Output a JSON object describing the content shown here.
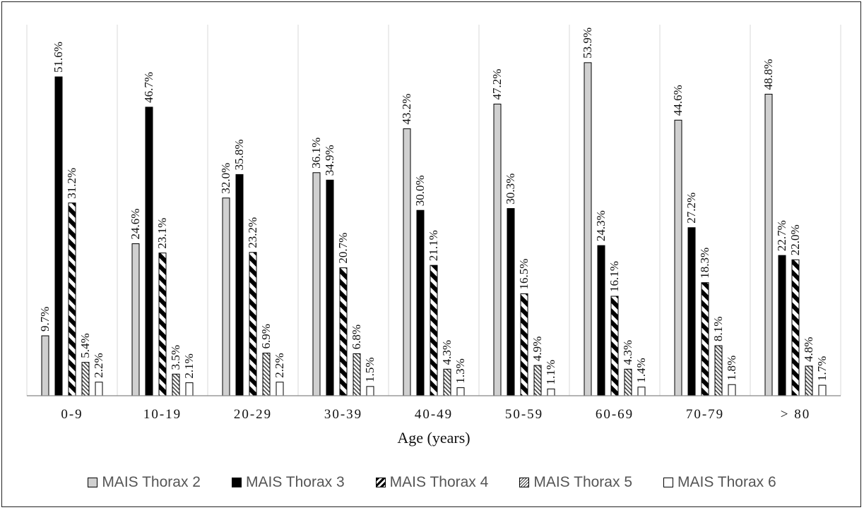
{
  "chart_data": {
    "type": "bar",
    "categories": [
      "0-9",
      "10-19",
      "20-29",
      "30-39",
      "40-49",
      "50-59",
      "60-69",
      "70-79",
      "> 80"
    ],
    "xlabel": "Age (years)",
    "ylabel": "",
    "ylim": [
      0,
      55
    ],
    "grid": "vertical separators between groups",
    "legend_position": "bottom",
    "series": [
      {
        "name": "MAIS Thorax 2",
        "color": "#d0d0d0",
        "pattern": "solid-gray",
        "values": [
          9.7,
          24.6,
          32.0,
          36.1,
          43.2,
          47.2,
          53.9,
          44.6,
          48.8
        ],
        "labels": [
          "9.7%",
          "24.6%",
          "32.0%",
          "36.1%",
          "43.2%",
          "47.2%",
          "53.9%",
          "44.6%",
          "48.8%"
        ]
      },
      {
        "name": "MAIS Thorax 3",
        "color": "#000000",
        "pattern": "solid-black",
        "values": [
          51.6,
          46.7,
          35.8,
          34.9,
          30.0,
          30.3,
          24.3,
          27.2,
          22.7
        ],
        "labels": [
          "51.6%",
          "46.7%",
          "35.8%",
          "34.9%",
          "30.0%",
          "30.3%",
          "24.3%",
          "27.2%",
          "22.7%"
        ]
      },
      {
        "name": "MAIS Thorax 4",
        "color": "#000000",
        "pattern": "wide-diagonal",
        "values": [
          31.2,
          23.1,
          23.2,
          20.7,
          21.1,
          16.5,
          16.1,
          18.3,
          22.0
        ],
        "labels": [
          "31.2%",
          "23.1%",
          "23.2%",
          "20.7%",
          "21.1%",
          "16.5%",
          "16.1%",
          "18.3%",
          "22.0%"
        ]
      },
      {
        "name": "MAIS Thorax 5",
        "color": "#555555",
        "pattern": "narrow-diagonal",
        "values": [
          5.4,
          3.5,
          6.9,
          6.8,
          4.3,
          4.9,
          4.3,
          8.1,
          4.8
        ],
        "labels": [
          "5.4%",
          "3.5%",
          "6.9%",
          "6.8%",
          "4.3%",
          "4.9%",
          "4.3%",
          "8.1%",
          "4.8%"
        ]
      },
      {
        "name": "MAIS Thorax 6",
        "color": "#ffffff",
        "pattern": "solid-white",
        "values": [
          2.2,
          2.1,
          2.2,
          1.5,
          1.3,
          1.1,
          1.4,
          1.8,
          1.7
        ],
        "labels": [
          "2.2%",
          "2.1%",
          "2.2%",
          "1.5%",
          "1.3%",
          "1.1%",
          "1.4%",
          "1.8%",
          "1.7%"
        ]
      }
    ]
  }
}
